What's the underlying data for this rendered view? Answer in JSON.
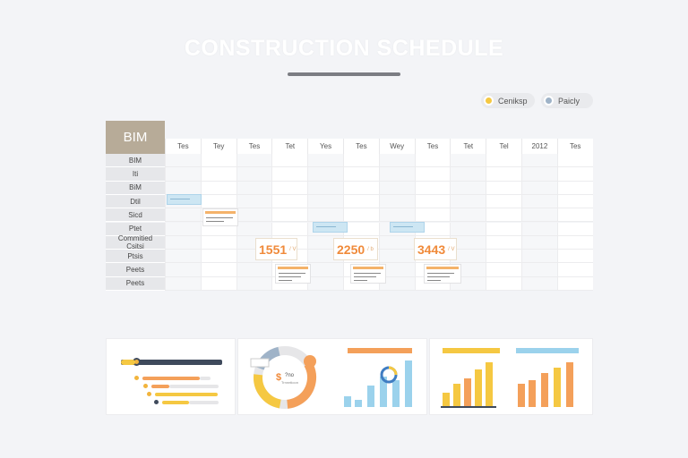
{
  "header": {
    "title": "CONSTRUCTION SCHEDULE"
  },
  "legend": [
    {
      "label": "Ceniksp",
      "color": "#f5c842"
    },
    {
      "label": "Paicly",
      "color": "#9fb3c8"
    }
  ],
  "schedule": {
    "corner_label": "BIM",
    "columns": [
      "Tes",
      "Tey",
      "Tes",
      "Tet",
      "Yes",
      "Tes",
      "Wey",
      "Tes",
      "Tet",
      "Tel",
      "2012",
      "Tes"
    ],
    "rows": [
      "BIM",
      "Iti",
      "BiM",
      "Dtil",
      "Sicd",
      "Ptet",
      "Commitied\nCsitsi",
      "Ptsis",
      "Peets",
      "Peets"
    ],
    "milestones": [
      {
        "value": "1551",
        "suffix": "/ V"
      },
      {
        "value": "2250",
        "suffix": "/ b"
      },
      {
        "value": "3443",
        "suffix": "/ V"
      }
    ]
  },
  "panels": {
    "donut": {
      "center_label": "$",
      "text": "?no",
      "subtext": "Trnnntioon"
    }
  }
}
